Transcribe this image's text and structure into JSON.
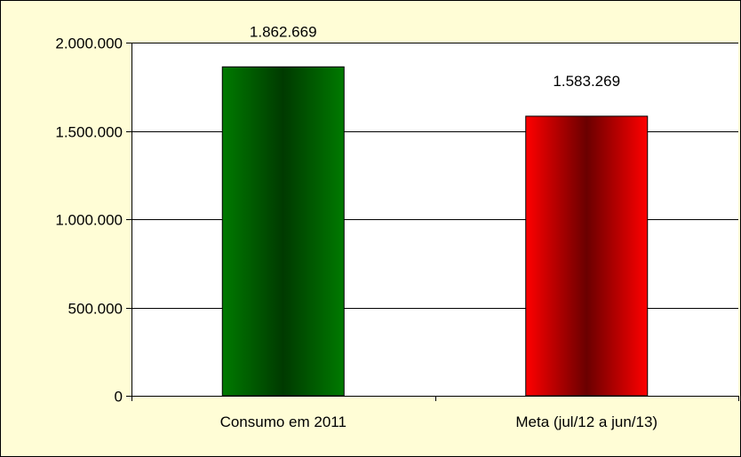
{
  "chart_data": {
    "type": "bar",
    "categories": [
      "Consumo em 2011",
      "Meta (jul/12 a jun/13)"
    ],
    "values": [
      1862669,
      1583269
    ],
    "value_labels": [
      "1.862.669",
      "1.583.269"
    ],
    "ylim": [
      0,
      2000000
    ],
    "yticks": [
      0,
      500000,
      1000000,
      1500000,
      2000000
    ],
    "ytick_labels": [
      "0",
      "500.000",
      "1.000.000",
      "1.500.000",
      "2.000.000"
    ],
    "title": "",
    "xlabel": "",
    "ylabel": "",
    "grid": true,
    "legend": "none",
    "colors": {
      "background": "#fffdd6",
      "plot_area": "#ffffff",
      "gridline": "#000000",
      "bar_green_edge": "#007a00",
      "bar_green_center": "#003a00",
      "bar_red_edge": "#ff0000",
      "bar_red_center": "#6a0000"
    }
  }
}
